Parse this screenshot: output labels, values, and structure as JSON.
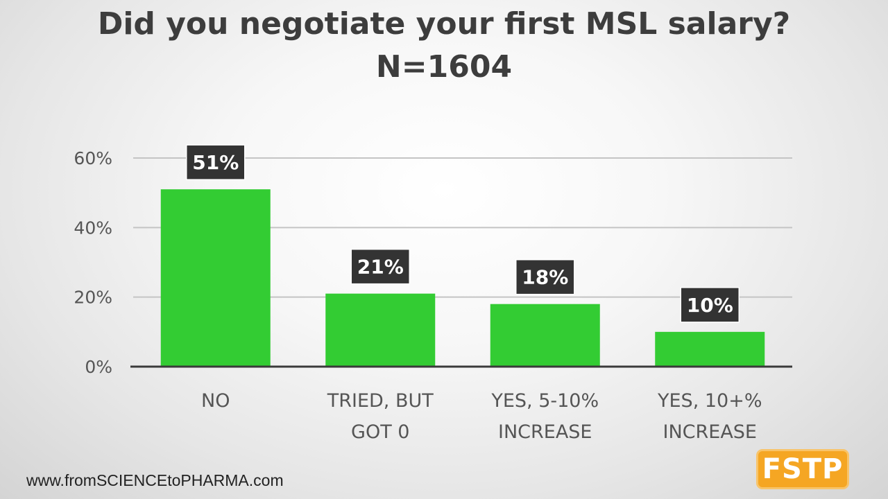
{
  "page": {
    "title_line1": "Did you negotiate your first MSL salary?",
    "title_line2": "N=1604",
    "footer_url": "www.fromSCIENCEtoPHARMA.com",
    "logo_text": "FSTP"
  },
  "colors": {
    "bar": "#33cc33",
    "label_box": "#333333",
    "label_text": "#ffffff",
    "gridline": "#c4c4c4",
    "axis": "#3a3a3a",
    "tick_text": "#555555",
    "logo_bg": "#f5a623"
  },
  "chart_data": {
    "type": "bar",
    "title": "Did you negotiate your first MSL salary? N=1604",
    "categories": [
      [
        "NO"
      ],
      [
        "TRIED, BUT",
        "GOT 0"
      ],
      [
        "YES, 5-10%",
        "INCREASE"
      ],
      [
        "YES, 10+%",
        "INCREASE"
      ]
    ],
    "values": [
      51,
      21,
      18,
      10
    ],
    "data_labels": [
      "51%",
      "21%",
      "18%",
      "10%"
    ],
    "y_ticks": [
      0,
      20,
      40,
      60
    ],
    "y_tick_labels": [
      "0%",
      "20%",
      "40%",
      "60%"
    ],
    "ylim": [
      0,
      60
    ],
    "xlabel": "",
    "ylabel": "",
    "grid": true,
    "legend": "none"
  }
}
